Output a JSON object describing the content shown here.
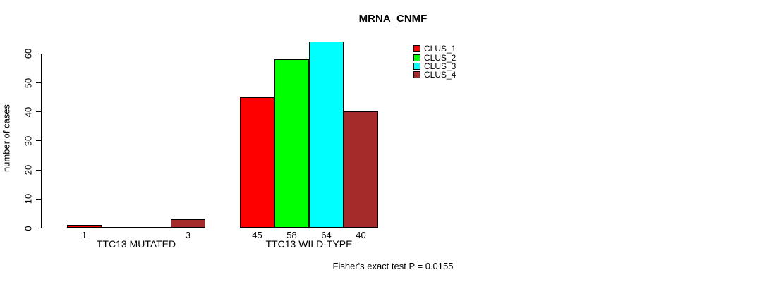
{
  "title": "MRNA_CNMF",
  "footer": "Fisher's exact test P = 0.0155",
  "colors": {
    "background": "#ffffff",
    "axis": "#000000",
    "text": "#000000"
  },
  "chart_data": {
    "type": "bar",
    "title": "MRNA_CNMF",
    "xlabel": "",
    "ylabel": "number of cases",
    "categories": [
      "TTC13 MUTATED",
      "TTC13 WILD-TYPE"
    ],
    "series": [
      {
        "name": "CLUS_1",
        "color": "#ff0000",
        "values": [
          1,
          45
        ]
      },
      {
        "name": "CLUS_2",
        "color": "#00ff00",
        "values": [
          0,
          58
        ]
      },
      {
        "name": "CLUS_3",
        "color": "#00ffff",
        "values": [
          0,
          64
        ]
      },
      {
        "name": "CLUS_4",
        "color": "#a52a2a",
        "values": [
          3,
          40
        ]
      }
    ],
    "bar_value_labels_visible": [
      "1",
      "3",
      "45",
      "58",
      "64",
      "40"
    ],
    "yticks": [
      0,
      10,
      20,
      30,
      40,
      50,
      60
    ],
    "ylim": [
      0,
      64
    ],
    "grid": false,
    "legend_position": "right",
    "annotation": "Fisher's exact test P = 0.0155"
  }
}
